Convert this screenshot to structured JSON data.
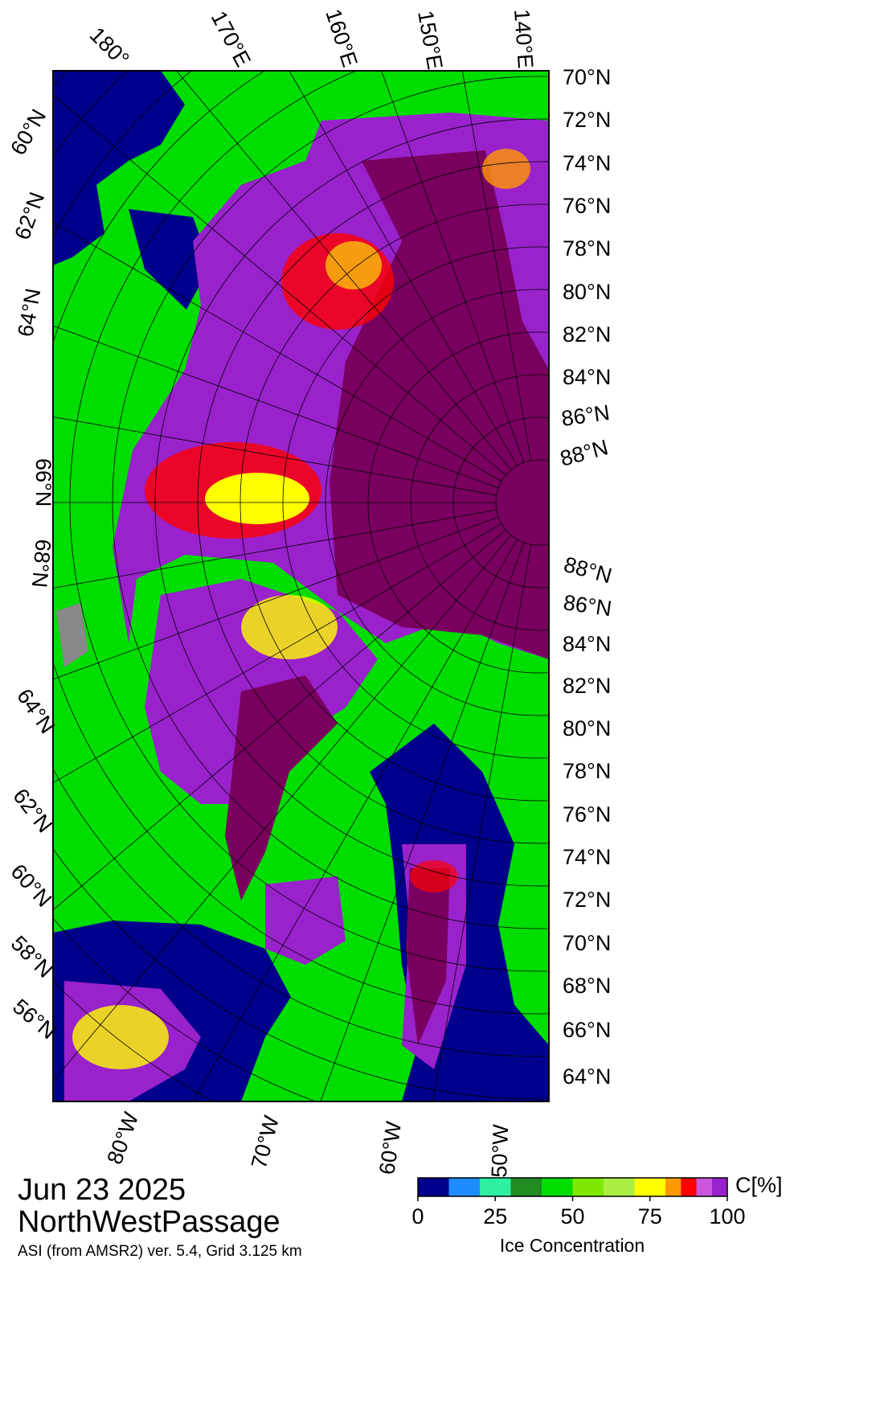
{
  "header": {
    "date": "Jun 23 2025",
    "region": "NorthWestPassage",
    "source": "ASI (from AMSR2) ver. 5.4,  Grid 3.125 km"
  },
  "map": {
    "top_labels": [
      "180°",
      "170°E",
      "160°E",
      "150°E",
      "140°E"
    ],
    "right_labels": [
      "70°N",
      "72°N",
      "74°N",
      "76°N",
      "78°N",
      "80°N",
      "82°N",
      "84°N",
      "86°N",
      "88°N",
      "88°N",
      "86°N",
      "84°N",
      "82°N",
      "80°N",
      "78°N",
      "76°N",
      "74°N",
      "72°N",
      "70°N",
      "68°N",
      "66°N",
      "64°N"
    ],
    "left_labels": [
      "60°N",
      "62°N",
      "64°N",
      "66°N",
      "68°N",
      "64°N",
      "62°N",
      "60°N",
      "58°N",
      "56°N"
    ],
    "bottom_labels": [
      "80°W",
      "70°W",
      "60°W",
      "50°W"
    ]
  },
  "colorbar": {
    "unit": "C[%]",
    "label": "Ice Concentration",
    "range": [
      0,
      100
    ],
    "ticks": [
      0,
      25,
      50,
      75,
      100
    ],
    "bins": [
      0,
      10,
      20,
      30,
      40,
      50,
      60,
      70,
      80,
      85,
      90,
      95,
      100
    ],
    "colors": [
      "#00008c",
      "#1e8cff",
      "#2cf0a0",
      "#228b22",
      "#00dd00",
      "#7fe800",
      "#aaee44",
      "#ffff00",
      "#ff9900",
      "#ff0000",
      "#cc55dd",
      "#9922cc"
    ]
  }
}
